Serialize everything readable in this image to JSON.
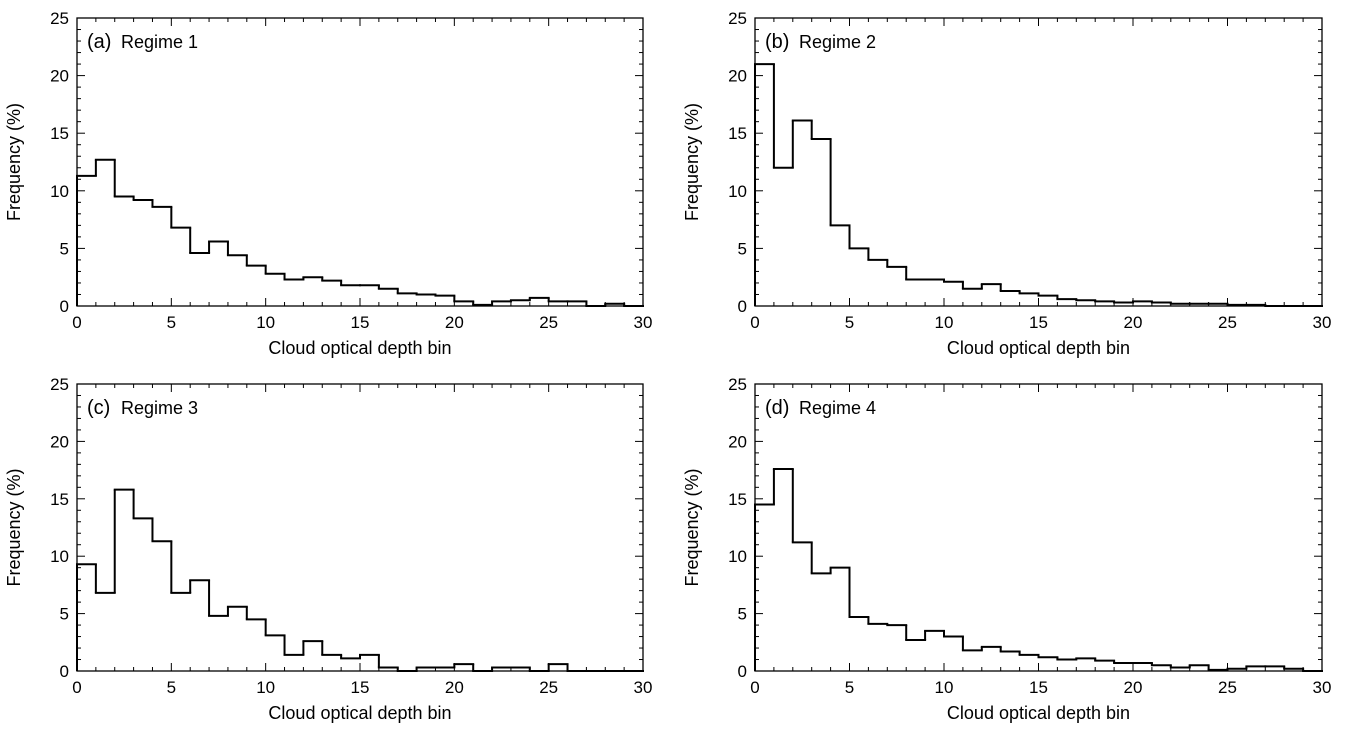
{
  "chart_data": [
    {
      "type": "histogram",
      "panel_label": "(a)",
      "title": "Regime 1",
      "xlabel": "Cloud optical depth bin",
      "ylabel": "Frequency (%)",
      "xlim": [
        0,
        30
      ],
      "ylim": [
        0,
        25
      ],
      "xticks": [
        0,
        5,
        10,
        15,
        20,
        25,
        30
      ],
      "yticks": [
        0,
        5,
        10,
        15,
        20,
        25
      ],
      "bin_width": 1,
      "x": [
        0,
        1,
        2,
        3,
        4,
        5,
        6,
        7,
        8,
        9,
        10,
        11,
        12,
        13,
        14,
        15,
        16,
        17,
        18,
        19,
        20,
        21,
        22,
        23,
        24,
        25,
        26,
        27,
        28,
        29
      ],
      "values": [
        11.3,
        12.7,
        9.5,
        9.2,
        8.6,
        6.8,
        4.6,
        5.6,
        4.4,
        3.5,
        2.8,
        2.3,
        2.5,
        2.2,
        1.8,
        1.8,
        1.5,
        1.1,
        1.0,
        0.9,
        0.4,
        0.1,
        0.4,
        0.5,
        0.7,
        0.4,
        0.4,
        0.0,
        0.2,
        0.0
      ]
    },
    {
      "type": "histogram",
      "panel_label": "(b)",
      "title": "Regime 2",
      "xlabel": "Cloud optical depth bin",
      "ylabel": "Frequency (%)",
      "xlim": [
        0,
        30
      ],
      "ylim": [
        0,
        25
      ],
      "xticks": [
        0,
        5,
        10,
        15,
        20,
        25,
        30
      ],
      "yticks": [
        0,
        5,
        10,
        15,
        20,
        25
      ],
      "bin_width": 1,
      "x": [
        0,
        1,
        2,
        3,
        4,
        5,
        6,
        7,
        8,
        9,
        10,
        11,
        12,
        13,
        14,
        15,
        16,
        17,
        18,
        19,
        20,
        21,
        22,
        23,
        24,
        25,
        26,
        27,
        28,
        29
      ],
      "values": [
        21.0,
        12.0,
        16.1,
        14.5,
        7.0,
        5.0,
        4.0,
        3.4,
        2.3,
        2.3,
        2.1,
        1.5,
        1.9,
        1.3,
        1.1,
        0.9,
        0.6,
        0.5,
        0.4,
        0.3,
        0.4,
        0.3,
        0.2,
        0.2,
        0.2,
        0.1,
        0.1,
        0.0,
        0.0,
        0.0
      ]
    },
    {
      "type": "histogram",
      "panel_label": "(c)",
      "title": "Regime 3",
      "xlabel": "Cloud optical depth bin",
      "ylabel": "Frequency (%)",
      "xlim": [
        0,
        30
      ],
      "ylim": [
        0,
        25
      ],
      "xticks": [
        0,
        5,
        10,
        15,
        20,
        25,
        30
      ],
      "yticks": [
        0,
        5,
        10,
        15,
        20,
        25
      ],
      "bin_width": 1,
      "x": [
        0,
        1,
        2,
        3,
        4,
        5,
        6,
        7,
        8,
        9,
        10,
        11,
        12,
        13,
        14,
        15,
        16,
        17,
        18,
        19,
        20,
        21,
        22,
        23,
        24,
        25,
        26,
        27,
        28,
        29
      ],
      "values": [
        9.3,
        6.8,
        15.8,
        13.3,
        11.3,
        6.8,
        7.9,
        4.8,
        5.6,
        4.5,
        3.1,
        1.4,
        2.6,
        1.4,
        1.1,
        1.4,
        0.3,
        0.0,
        0.3,
        0.3,
        0.6,
        0.0,
        0.3,
        0.3,
        0.0,
        0.6,
        0.0,
        0.0,
        0.0,
        0.0
      ]
    },
    {
      "type": "histogram",
      "panel_label": "(d)",
      "title": "Regime 4",
      "xlabel": "Cloud optical depth bin",
      "ylabel": "Frequency (%)",
      "xlim": [
        0,
        30
      ],
      "ylim": [
        0,
        25
      ],
      "xticks": [
        0,
        5,
        10,
        15,
        20,
        25,
        30
      ],
      "yticks": [
        0,
        5,
        10,
        15,
        20,
        25
      ],
      "bin_width": 1,
      "x": [
        0,
        1,
        2,
        3,
        4,
        5,
        6,
        7,
        8,
        9,
        10,
        11,
        12,
        13,
        14,
        15,
        16,
        17,
        18,
        19,
        20,
        21,
        22,
        23,
        24,
        25,
        26,
        27,
        28,
        29
      ],
      "values": [
        14.5,
        17.6,
        11.2,
        8.5,
        9.0,
        4.7,
        4.1,
        4.0,
        2.7,
        3.5,
        3.0,
        1.8,
        2.1,
        1.7,
        1.4,
        1.2,
        1.0,
        1.1,
        0.9,
        0.7,
        0.7,
        0.5,
        0.3,
        0.5,
        0.1,
        0.2,
        0.4,
        0.4,
        0.2,
        0.0
      ]
    }
  ],
  "colors": {
    "line": "#000000",
    "background": "#ffffff"
  }
}
